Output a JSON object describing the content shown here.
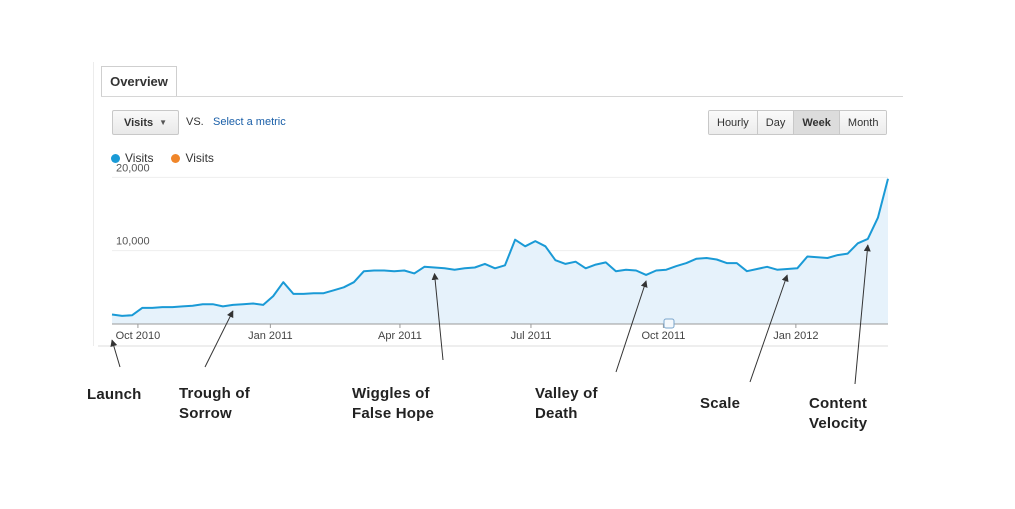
{
  "tab": {
    "label": "Overview"
  },
  "toolbar": {
    "metric_label": "Visits",
    "vs_label": "VS.",
    "select_metric_label": "Select a metric",
    "ranges": [
      "Hourly",
      "Day",
      "Week",
      "Month"
    ],
    "active_range": "Week"
  },
  "legend": [
    {
      "label": "Visits",
      "color": "#1a9ad6"
    },
    {
      "label": "Visits",
      "color": "#f0862a"
    }
  ],
  "chart_data": {
    "type": "area",
    "x": [
      "2010-09-13",
      "2010-09-20",
      "2010-09-27",
      "2010-10-04",
      "2010-10-11",
      "2010-10-18",
      "2010-10-25",
      "2010-11-01",
      "2010-11-08",
      "2010-11-15",
      "2010-11-22",
      "2010-11-29",
      "2010-12-06",
      "2010-12-13",
      "2010-12-20",
      "2010-12-27",
      "2011-01-03",
      "2011-01-10",
      "2011-01-17",
      "2011-01-24",
      "2011-01-31",
      "2011-02-07",
      "2011-02-14",
      "2011-02-21",
      "2011-02-28",
      "2011-03-07",
      "2011-03-14",
      "2011-03-21",
      "2011-03-28",
      "2011-04-04",
      "2011-04-11",
      "2011-04-18",
      "2011-04-25",
      "2011-05-02",
      "2011-05-09",
      "2011-05-16",
      "2011-05-23",
      "2011-05-30",
      "2011-06-06",
      "2011-06-13",
      "2011-06-20",
      "2011-06-27",
      "2011-07-04",
      "2011-07-11",
      "2011-07-18",
      "2011-07-25",
      "2011-08-01",
      "2011-08-08",
      "2011-08-15",
      "2011-08-22",
      "2011-08-29",
      "2011-09-05",
      "2011-09-12",
      "2011-09-19",
      "2011-09-26",
      "2011-10-03",
      "2011-10-10",
      "2011-10-17",
      "2011-10-24",
      "2011-10-31",
      "2011-11-07",
      "2011-11-14",
      "2011-11-21",
      "2011-11-28",
      "2011-12-05",
      "2011-12-12",
      "2011-12-19",
      "2011-12-26",
      "2012-01-02",
      "2012-01-09",
      "2012-01-16",
      "2012-01-23",
      "2012-01-30",
      "2012-02-06",
      "2012-02-13",
      "2012-02-20",
      "2012-02-27",
      "2012-03-05"
    ],
    "series": [
      {
        "values": [
          1300,
          1100,
          1200,
          2200,
          2200,
          2300,
          2300,
          2400,
          2500,
          2700,
          2700,
          2400,
          2600,
          2700,
          2800,
          2600,
          3800,
          5700,
          4100,
          4100,
          4200,
          4200,
          4600,
          5000,
          5700,
          7200,
          7300,
          7300,
          7200,
          7300,
          6900,
          7800,
          7700,
          7600,
          7400,
          7600,
          7700,
          8200,
          7600,
          8000,
          11500,
          10600,
          11300,
          10600,
          8700,
          8200,
          8500,
          7600,
          8100,
          8400,
          7200,
          7400,
          7300,
          6700,
          7300,
          7400,
          7900,
          8300,
          8900,
          9000,
          8800,
          8300,
          8300,
          7200,
          7500,
          7800,
          7400,
          7500,
          7600,
          9200,
          9100,
          9000,
          9400,
          9600,
          11000,
          11600,
          14500,
          19800
        ]
      }
    ],
    "x_ticks": [
      "Oct 2010",
      "Jan 2011",
      "Apr 2011",
      "Jul 2011",
      "Oct 2011",
      "Jan 2012"
    ],
    "y_ticks": [
      "20,000",
      "10,000"
    ],
    "ylim": [
      0,
      21000
    ],
    "grid": true,
    "annotations": [
      {
        "text": "Launch",
        "x": "2010-09-13"
      },
      {
        "text": "Trough of\nSorrow",
        "x": "2010-12-06"
      },
      {
        "text": "Wiggles of\nFalse Hope",
        "x": "2011-04-25"
      },
      {
        "text": "Valley of\nDeath",
        "x": "2011-09-19"
      },
      {
        "text": "Scale",
        "x": "2011-12-26"
      },
      {
        "text": "Content\nVelocity",
        "x": "2012-02-20"
      }
    ]
  }
}
